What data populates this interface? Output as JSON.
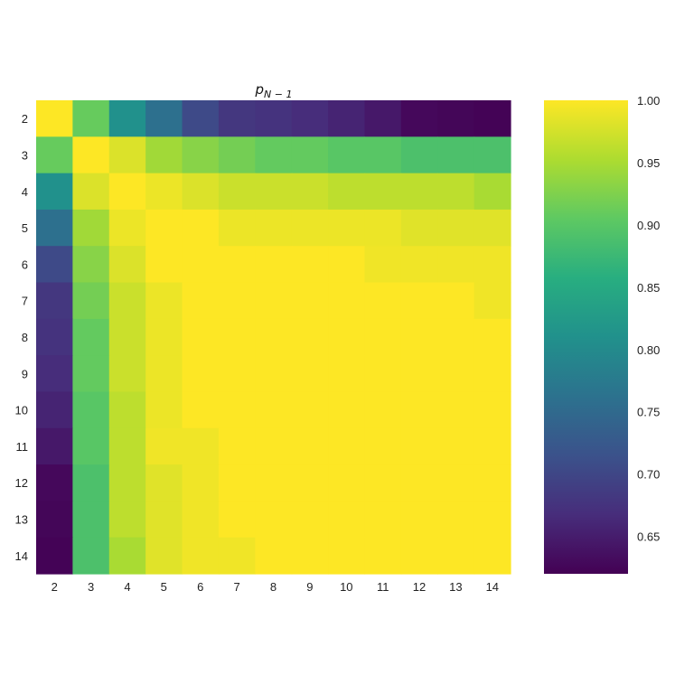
{
  "chart_data": {
    "type": "heatmap",
    "title": {
      "main": "p",
      "subscript": "N − 1"
    },
    "xlabel": "",
    "ylabel": "",
    "x_categories": [
      "2",
      "3",
      "4",
      "5",
      "6",
      "7",
      "8",
      "9",
      "10",
      "11",
      "12",
      "13",
      "14"
    ],
    "y_categories": [
      "2",
      "3",
      "4",
      "5",
      "6",
      "7",
      "8",
      "9",
      "10",
      "11",
      "12",
      "13",
      "14"
    ],
    "values": [
      [
        1.0,
        0.91,
        0.81,
        0.76,
        0.705,
        0.68,
        0.675,
        0.668,
        0.658,
        0.645,
        0.628,
        0.625,
        0.622
      ],
      [
        0.91,
        1.0,
        0.98,
        0.945,
        0.93,
        0.918,
        0.908,
        0.908,
        0.9,
        0.9,
        0.89,
        0.89,
        0.89
      ],
      [
        0.81,
        0.98,
        1.0,
        0.99,
        0.98,
        0.97,
        0.97,
        0.97,
        0.962,
        0.962,
        0.962,
        0.962,
        0.95
      ],
      [
        0.76,
        0.945,
        0.99,
        1.0,
        1.0,
        0.99,
        0.99,
        0.99,
        0.99,
        0.99,
        0.983,
        0.983,
        0.983
      ],
      [
        0.705,
        0.93,
        0.98,
        1.0,
        1.0,
        1.0,
        1.0,
        1.0,
        1.0,
        0.992,
        0.992,
        0.992,
        0.992
      ],
      [
        0.68,
        0.918,
        0.97,
        0.99,
        1.0,
        1.0,
        1.0,
        1.0,
        1.0,
        1.0,
        1.0,
        1.0,
        0.992
      ],
      [
        0.675,
        0.908,
        0.97,
        0.99,
        1.0,
        1.0,
        1.0,
        1.0,
        1.0,
        1.0,
        1.0,
        1.0,
        1.0
      ],
      [
        0.668,
        0.908,
        0.97,
        0.99,
        1.0,
        1.0,
        1.0,
        1.0,
        1.0,
        1.0,
        1.0,
        1.0,
        1.0
      ],
      [
        0.658,
        0.9,
        0.962,
        0.99,
        1.0,
        1.0,
        1.0,
        1.0,
        1.0,
        1.0,
        1.0,
        1.0,
        1.0
      ],
      [
        0.645,
        0.9,
        0.962,
        0.992,
        0.992,
        1.0,
        1.0,
        1.0,
        1.0,
        1.0,
        1.0,
        1.0,
        1.0
      ],
      [
        0.628,
        0.89,
        0.962,
        0.983,
        0.992,
        1.0,
        1.0,
        1.0,
        1.0,
        1.0,
        1.0,
        1.0,
        1.0
      ],
      [
        0.625,
        0.89,
        0.962,
        0.983,
        0.992,
        1.0,
        1.0,
        1.0,
        1.0,
        1.0,
        1.0,
        1.0,
        1.0
      ],
      [
        0.622,
        0.89,
        0.95,
        0.983,
        0.992,
        0.992,
        1.0,
        1.0,
        1.0,
        1.0,
        1.0,
        1.0,
        1.0
      ]
    ],
    "colorbar": {
      "colormap": "viridis",
      "vmin": 0.62,
      "vmax": 1.0,
      "ticks": [
        0.65,
        0.7,
        0.75,
        0.8,
        0.85,
        0.9,
        0.95,
        1.0
      ],
      "tick_labels": [
        "0.65",
        "0.70",
        "0.75",
        "0.80",
        "0.85",
        "0.90",
        "0.95",
        "1.00"
      ]
    },
    "grid": false
  }
}
